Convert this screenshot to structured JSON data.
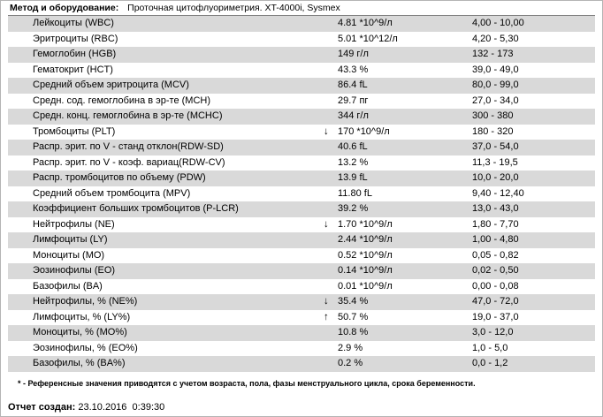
{
  "header": {
    "label": "Метод и оборудование:",
    "equipment": "Проточная цитофлуориметрия. XT-4000i, Sysmex"
  },
  "icons": {
    "down": "↓",
    "up": "↑"
  },
  "table": {
    "rows": [
      {
        "name": "Лейкоциты (WBC)",
        "flag": "",
        "value": "4.81 *10^9/л",
        "ref": "4,00 - 10,00"
      },
      {
        "name": "Эритроциты (RBC)",
        "flag": "",
        "value": "5.01 *10^12/л",
        "ref": "4,20 - 5,30"
      },
      {
        "name": "Гемоглобин (HGB)",
        "flag": "",
        "value": "149 г/л",
        "ref": "132 - 173"
      },
      {
        "name": "Гематокрит (HCT)",
        "flag": "",
        "value": "43.3 %",
        "ref": "39,0 - 49,0"
      },
      {
        "name": "Средний объем эритроцита (MCV)",
        "flag": "",
        "value": "86.4 fL",
        "ref": "80,0 - 99,0"
      },
      {
        "name": "Средн. сод. гемоглобина в эр-те (MCH)",
        "flag": "",
        "value": "29.7 пг",
        "ref": "27,0 - 34,0"
      },
      {
        "name": "Средн. конц. гемоглобина в эр-те (MCHC)",
        "flag": "",
        "value": "344 г/л",
        "ref": "300 - 380"
      },
      {
        "name": "Тромбоциты (PLT)",
        "flag": "down",
        "value": "170 *10^9/л",
        "ref": "180 - 320"
      },
      {
        "name": "Распр. эрит. по V - станд отклон(RDW-SD)",
        "flag": "",
        "value": "40.6 fL",
        "ref": "37,0 - 54,0"
      },
      {
        "name": "Распр. эрит. по V - коэф. вариац(RDW-CV)",
        "flag": "",
        "value": "13.2 %",
        "ref": "11,3 - 19,5"
      },
      {
        "name": "Распр. тромбоцитов по объему (PDW)",
        "flag": "",
        "value": "13.9 fL",
        "ref": "10,0 - 20,0"
      },
      {
        "name": "Средний объем тромбоцита (MPV)",
        "flag": "",
        "value": "11.80 fL",
        "ref": "9,40 - 12,40"
      },
      {
        "name": "Коэффициент больших тромбоцитов (P-LCR)",
        "flag": "",
        "value": "39.2 %",
        "ref": "13,0 - 43,0"
      },
      {
        "name": "Нейтрофилы (NE)",
        "flag": "down",
        "value": "1.70 *10^9/л",
        "ref": "1,80 - 7,70"
      },
      {
        "name": "Лимфоциты (LY)",
        "flag": "",
        "value": "2.44 *10^9/л",
        "ref": "1,00 - 4,80"
      },
      {
        "name": "Моноциты (MO)",
        "flag": "",
        "value": "0.52 *10^9/л",
        "ref": "0,05 - 0,82"
      },
      {
        "name": "Эозинофилы (EO)",
        "flag": "",
        "value": "0.14 *10^9/л",
        "ref": "0,02 - 0,50"
      },
      {
        "name": "Базофилы (BA)",
        "flag": "",
        "value": "0.01 *10^9/л",
        "ref": "0,00 - 0,08"
      },
      {
        "name": "Нейтрофилы, % (NE%)",
        "flag": "down",
        "value": "35.4 %",
        "ref": "47,0 - 72,0"
      },
      {
        "name": "Лимфоциты, % (LY%)",
        "flag": "up",
        "value": "50.7 %",
        "ref": "19,0 - 37,0"
      },
      {
        "name": "Моноциты, % (MO%)",
        "flag": "",
        "value": "10.8 %",
        "ref": "3,0 - 12,0"
      },
      {
        "name": "Эозинофилы, % (EO%)",
        "flag": "",
        "value": "2.9 %",
        "ref": "1,0 - 5,0"
      },
      {
        "name": "Базофилы, % (BA%)",
        "flag": "",
        "value": "0.2 %",
        "ref": "0,0 - 1,2"
      }
    ]
  },
  "footnote": "* - Референсные значения приводятся с учетом возраста, пола, фазы менструального цикла, срока беременности.",
  "report": {
    "label": "Отчет создан:",
    "value": " 23.10.2016  0:39:30"
  },
  "colors": {
    "stripe": "#d9d9d9",
    "page_border": "#b4b4b4",
    "rule": "#7f7f7f"
  }
}
